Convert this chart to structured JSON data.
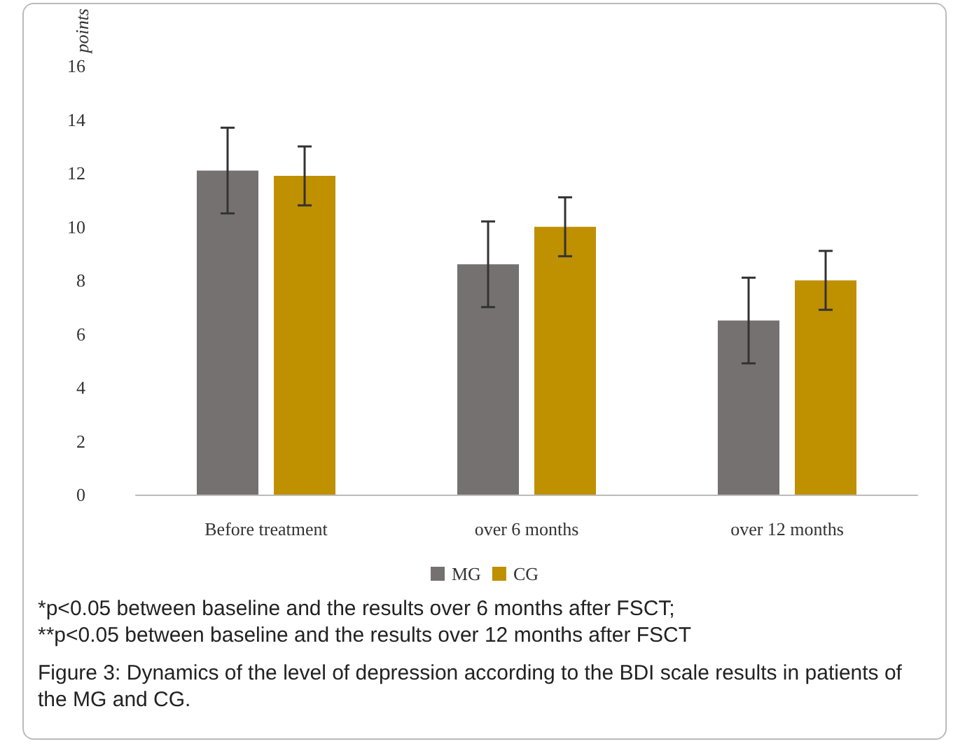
{
  "chart_data": {
    "type": "bar",
    "categories": [
      "Before treatment",
      "over 6 months",
      "over 12 months"
    ],
    "ylabel": "points",
    "series": [
      {
        "name": "MG",
        "color": "#767171",
        "values": [
          12.1,
          8.6,
          6.5
        ],
        "errors": [
          1.6,
          1.6,
          1.6
        ]
      },
      {
        "name": "CG",
        "color": "#bf9000",
        "values": [
          11.9,
          10.0,
          8.0
        ],
        "errors": [
          1.1,
          1.1,
          1.1
        ]
      }
    ],
    "ylim": [
      0,
      16
    ],
    "yticks": [
      0,
      2,
      4,
      6,
      8,
      10,
      12,
      14,
      16
    ],
    "grid": false,
    "legend": "bottom",
    "annotations": [
      "*p<0.05 between baseline and the results over 6 months after FSCT;",
      "**p<0.05 between baseline and the results over 12 months after FSCT",
      "Figure 3: Dynamics of the level of depression according to the BDI scale results in patients of the MG and CG."
    ]
  }
}
